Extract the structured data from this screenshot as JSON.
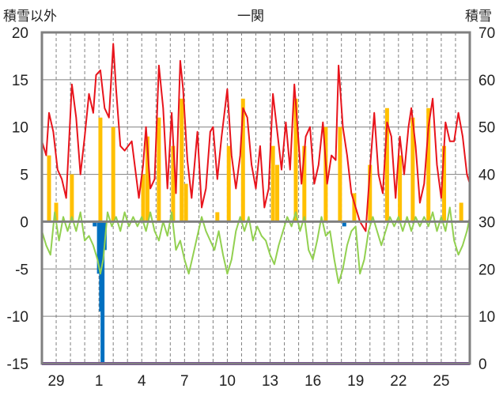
{
  "header": {
    "left_axis_title": "積雪以外",
    "title": "一関",
    "right_axis_title": "積雪"
  },
  "colors": {
    "red_series": "#e8141c",
    "orange_series": "#ffc000",
    "blue_series": "#0070c0",
    "green_series": "#92d050",
    "purple_series": "#7030a0",
    "frame": "#808080",
    "grid": "#808080"
  },
  "chart_data": {
    "type": "line",
    "title": "一関",
    "ylabel_left": "積雪以外",
    "ylabel_right": "積雪",
    "ylim_left": [
      -15,
      20
    ],
    "ylim_right": [
      0,
      70
    ],
    "yticks_left": [
      -15,
      -10,
      -5,
      0,
      5,
      10,
      15,
      20
    ],
    "yticks_right": [
      0,
      10,
      20,
      30,
      40,
      50,
      60,
      70
    ],
    "xlim": [
      0,
      30
    ],
    "xticks": [
      {
        "x": 1,
        "label": "29"
      },
      {
        "x": 4,
        "label": "1"
      },
      {
        "x": 7,
        "label": "4"
      },
      {
        "x": 10,
        "label": "7"
      },
      {
        "x": 13,
        "label": "10"
      },
      {
        "x": 16,
        "label": "13"
      },
      {
        "x": 19,
        "label": "16"
      },
      {
        "x": 22,
        "label": "19"
      },
      {
        "x": 25,
        "label": "22"
      },
      {
        "x": 28,
        "label": "25"
      }
    ],
    "grid": "vertical dashed lines each day, horizontal solid lines at each 5",
    "series": [
      {
        "axis": "left",
        "style": "line",
        "color": "#e8141c",
        "points": [
          [
            0,
            8.5
          ],
          [
            0.3,
            7
          ],
          [
            0.5,
            11.5
          ],
          [
            0.8,
            9.5
          ],
          [
            1.1,
            5.5
          ],
          [
            1.4,
            4.5
          ],
          [
            1.7,
            2.5
          ],
          [
            2.1,
            14.5
          ],
          [
            2.4,
            11
          ],
          [
            2.7,
            5
          ],
          [
            3,
            9
          ],
          [
            3.3,
            13.5
          ],
          [
            3.6,
            11.5
          ],
          [
            3.8,
            15.5
          ],
          [
            4.1,
            16
          ],
          [
            4.4,
            12
          ],
          [
            4.7,
            11
          ],
          [
            5.0,
            18.8
          ],
          [
            5.2,
            14
          ],
          [
            5.5,
            8
          ],
          [
            5.8,
            7.5
          ],
          [
            6.3,
            8.5
          ],
          [
            6.8,
            2.5
          ],
          [
            7.1,
            6
          ],
          [
            7.3,
            10
          ],
          [
            7.6,
            3.5
          ],
          [
            7.9,
            4.5
          ],
          [
            8.2,
            16.5
          ],
          [
            8.5,
            12
          ],
          [
            8.8,
            3.5
          ],
          [
            9.1,
            11.5
          ],
          [
            9.4,
            3
          ],
          [
            9.7,
            17
          ],
          [
            9.9,
            14
          ],
          [
            10.2,
            6.5
          ],
          [
            10.5,
            2.5
          ],
          [
            10.9,
            9.5
          ],
          [
            11.2,
            1.5
          ],
          [
            11.5,
            3.5
          ],
          [
            11.8,
            9.5
          ],
          [
            12.0,
            10
          ],
          [
            12.3,
            4.5
          ],
          [
            12.6,
            9
          ],
          [
            13.0,
            14
          ],
          [
            13.3,
            7
          ],
          [
            13.6,
            3.5
          ],
          [
            13.9,
            7
          ],
          [
            14.1,
            12
          ],
          [
            14.4,
            11
          ],
          [
            14.7,
            6
          ],
          [
            15.0,
            3.5
          ],
          [
            15.3,
            8
          ],
          [
            15.6,
            1.5
          ],
          [
            15.9,
            3.5
          ],
          [
            16.2,
            13.5
          ],
          [
            16.5,
            9.5
          ],
          [
            16.8,
            5.5
          ],
          [
            17.1,
            10.5
          ],
          [
            17.4,
            5.5
          ],
          [
            17.7,
            14.5
          ],
          [
            17.9,
            10.5
          ],
          [
            18.2,
            4
          ],
          [
            18.5,
            9
          ],
          [
            18.8,
            10
          ],
          [
            19.1,
            4
          ],
          [
            19.4,
            6
          ],
          [
            19.7,
            10.5
          ],
          [
            20.0,
            4
          ],
          [
            20.3,
            7
          ],
          [
            20.6,
            6.5
          ],
          [
            20.8,
            16.5
          ],
          [
            21.1,
            10
          ],
          [
            21.4,
            7
          ],
          [
            21.7,
            3
          ],
          [
            22.0,
            1.5
          ],
          [
            22.3,
            0
          ],
          [
            22.7,
            -1
          ],
          [
            23.0,
            5.5
          ],
          [
            23.3,
            11.5
          ],
          [
            23.6,
            5
          ],
          [
            23.9,
            3
          ],
          [
            24.2,
            10.5
          ],
          [
            24.5,
            9
          ],
          [
            24.8,
            2.5
          ],
          [
            25.1,
            9
          ],
          [
            25.4,
            5
          ],
          [
            25.7,
            10
          ],
          [
            25.9,
            12
          ],
          [
            26.2,
            8
          ],
          [
            26.5,
            2
          ],
          [
            26.8,
            4
          ],
          [
            27.1,
            10
          ],
          [
            27.4,
            13
          ],
          [
            27.7,
            6
          ],
          [
            28.0,
            2.5
          ],
          [
            28.3,
            10.5
          ],
          [
            28.6,
            8.5
          ],
          [
            28.9,
            8.5
          ],
          [
            29.2,
            11.5
          ],
          [
            29.5,
            9
          ],
          [
            29.8,
            5
          ],
          [
            30,
            4
          ]
        ]
      },
      {
        "axis": "left",
        "style": "bars",
        "color": "#ffc000",
        "points": [
          [
            0.5,
            7
          ],
          [
            1.0,
            2
          ],
          [
            2.1,
            5
          ],
          [
            4.1,
            11
          ],
          [
            5.0,
            10
          ],
          [
            7.1,
            5
          ],
          [
            7.4,
            9
          ],
          [
            8.2,
            11
          ],
          [
            9.2,
            8
          ],
          [
            9.8,
            13
          ],
          [
            10.1,
            4
          ],
          [
            12.3,
            1
          ],
          [
            13.1,
            8
          ],
          [
            14.1,
            13
          ],
          [
            16.2,
            8
          ],
          [
            16.5,
            6
          ],
          [
            17.8,
            13
          ],
          [
            18.4,
            8
          ],
          [
            19.9,
            10
          ],
          [
            20.9,
            10
          ],
          [
            21.9,
            3
          ],
          [
            23.0,
            6
          ],
          [
            24.2,
            12
          ],
          [
            25.1,
            7
          ],
          [
            26.0,
            11
          ],
          [
            27.1,
            12
          ],
          [
            28.2,
            8
          ],
          [
            29.4,
            2
          ]
        ]
      },
      {
        "axis": "left",
        "style": "bars",
        "color": "#0070c0",
        "points": [
          [
            3.7,
            -0.5
          ],
          [
            4.0,
            -5.5
          ],
          [
            4.15,
            -9.5
          ],
          [
            4.25,
            -15
          ],
          [
            4.4,
            -3
          ],
          [
            21.2,
            -0.5
          ]
        ]
      },
      {
        "axis": "left",
        "style": "line",
        "color": "#92d050",
        "points": [
          [
            0,
            -1
          ],
          [
            0.3,
            -2.5
          ],
          [
            0.6,
            -3.5
          ],
          [
            0.9,
            1
          ],
          [
            1.2,
            -2
          ],
          [
            1.5,
            0.5
          ],
          [
            1.8,
            -1
          ],
          [
            2.1,
            0.5
          ],
          [
            2.4,
            -1
          ],
          [
            2.7,
            1
          ],
          [
            3.0,
            -2
          ],
          [
            3.3,
            -1.5
          ],
          [
            3.6,
            -2.5
          ],
          [
            3.9,
            -4
          ],
          [
            4.1,
            -5.5
          ],
          [
            4.3,
            -4
          ],
          [
            4.6,
            1
          ],
          [
            4.9,
            -0.5
          ],
          [
            5.2,
            0.5
          ],
          [
            5.5,
            -1
          ],
          [
            5.8,
            1
          ],
          [
            6.1,
            -0.5
          ],
          [
            6.4,
            0.5
          ],
          [
            6.7,
            -0.5
          ],
          [
            7.0,
            0.5
          ],
          [
            7.3,
            -1
          ],
          [
            7.6,
            1
          ],
          [
            7.9,
            -1
          ],
          [
            8.2,
            -2
          ],
          [
            8.5,
            0
          ],
          [
            8.8,
            -1.5
          ],
          [
            9.1,
            1
          ],
          [
            9.4,
            -3
          ],
          [
            9.7,
            -2
          ],
          [
            10.0,
            -4
          ],
          [
            10.3,
            -5.5
          ],
          [
            10.6,
            -3.5
          ],
          [
            10.9,
            -1.5
          ],
          [
            11.2,
            0.5
          ],
          [
            11.5,
            -1
          ],
          [
            11.8,
            -2
          ],
          [
            12.1,
            -3
          ],
          [
            12.4,
            -1
          ],
          [
            12.7,
            -3.5
          ],
          [
            13.0,
            -5.5
          ],
          [
            13.3,
            -4
          ],
          [
            13.6,
            -1
          ],
          [
            13.9,
            0.5
          ],
          [
            14.2,
            -1
          ],
          [
            14.5,
            0.5
          ],
          [
            14.8,
            -2
          ],
          [
            15.1,
            -0.5
          ],
          [
            15.4,
            -1.5
          ],
          [
            15.7,
            -2
          ],
          [
            16.0,
            -3.5
          ],
          [
            16.3,
            -4.5
          ],
          [
            16.6,
            -2.5
          ],
          [
            16.9,
            -1
          ],
          [
            17.2,
            0.5
          ],
          [
            17.5,
            -0.5
          ],
          [
            17.8,
            1
          ],
          [
            18.1,
            -1
          ],
          [
            18.4,
            0.5
          ],
          [
            18.7,
            -3
          ],
          [
            19.0,
            -4
          ],
          [
            19.3,
            -2
          ],
          [
            19.6,
            0.5
          ],
          [
            19.9,
            -1.5
          ],
          [
            20.2,
            -1
          ],
          [
            20.5,
            -4
          ],
          [
            20.8,
            -6.5
          ],
          [
            21.1,
            -5
          ],
          [
            21.4,
            -2.5
          ],
          [
            21.7,
            -1
          ],
          [
            22.0,
            -0.5
          ],
          [
            22.3,
            -5.5
          ],
          [
            22.6,
            -4
          ],
          [
            22.9,
            -1
          ],
          [
            23.2,
            0.5
          ],
          [
            23.5,
            -1
          ],
          [
            23.8,
            -2.5
          ],
          [
            24.1,
            -1
          ],
          [
            24.4,
            0.5
          ],
          [
            24.7,
            -0.5
          ],
          [
            25.0,
            0.5
          ],
          [
            25.3,
            -1
          ],
          [
            25.6,
            0.5
          ],
          [
            25.9,
            -1
          ],
          [
            26.2,
            0.5
          ],
          [
            26.5,
            -0.5
          ],
          [
            26.8,
            0.5
          ],
          [
            27.1,
            -0.5
          ],
          [
            27.4,
            1
          ],
          [
            27.7,
            -1
          ],
          [
            28.0,
            0.5
          ],
          [
            28.3,
            -1
          ],
          [
            28.6,
            1.5
          ],
          [
            28.9,
            -2
          ],
          [
            29.2,
            -3.5
          ],
          [
            29.5,
            -2.5
          ],
          [
            29.8,
            -1
          ],
          [
            30,
            0.5
          ]
        ]
      },
      {
        "axis": "right",
        "style": "line",
        "color": "#7030a0",
        "points": [
          [
            0,
            0
          ],
          [
            30,
            0
          ]
        ]
      }
    ]
  }
}
